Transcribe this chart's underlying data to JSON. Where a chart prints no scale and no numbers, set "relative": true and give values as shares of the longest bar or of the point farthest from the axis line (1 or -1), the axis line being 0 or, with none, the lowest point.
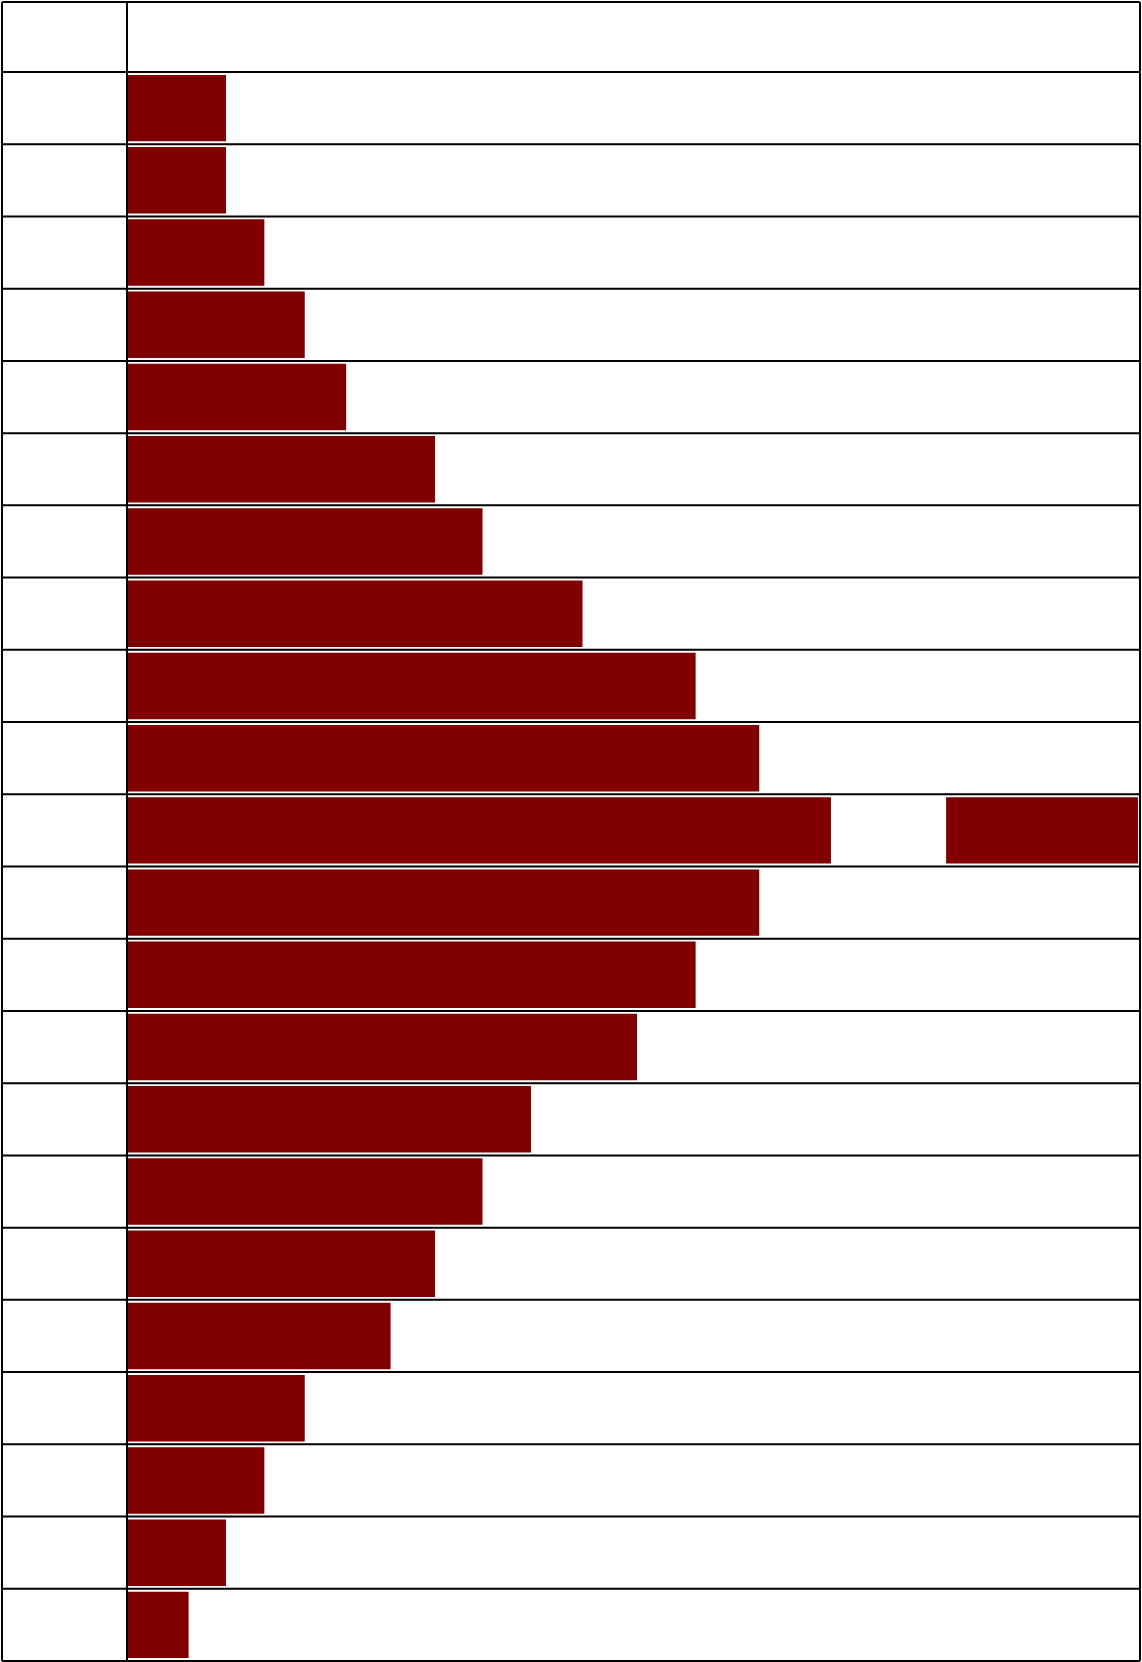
{
  "chart_data": {
    "type": "bar",
    "orientation": "horizontal",
    "relative": true,
    "grid": true,
    "categories": [
      null,
      null,
      null,
      null,
      null,
      null,
      null,
      null,
      null,
      null,
      null,
      null,
      null,
      null,
      null,
      null,
      null,
      null,
      null,
      null,
      null,
      null
    ],
    "series": [
      {
        "color": "#800000",
        "values": [
          0.097,
          0.097,
          0.135,
          0.175,
          0.216,
          0.304,
          0.351,
          0.45,
          0.562,
          0.625,
          1,
          0.625,
          0.562,
          0.504,
          0.399,
          0.351,
          0.304,
          0.26,
          0.175,
          0.135,
          0.097,
          0.06
        ]
      }
    ],
    "bands": [
      {
        "axis": "x",
        "from": 0.696,
        "to": 0.81,
        "color": "#ffffff"
      }
    ]
  }
}
